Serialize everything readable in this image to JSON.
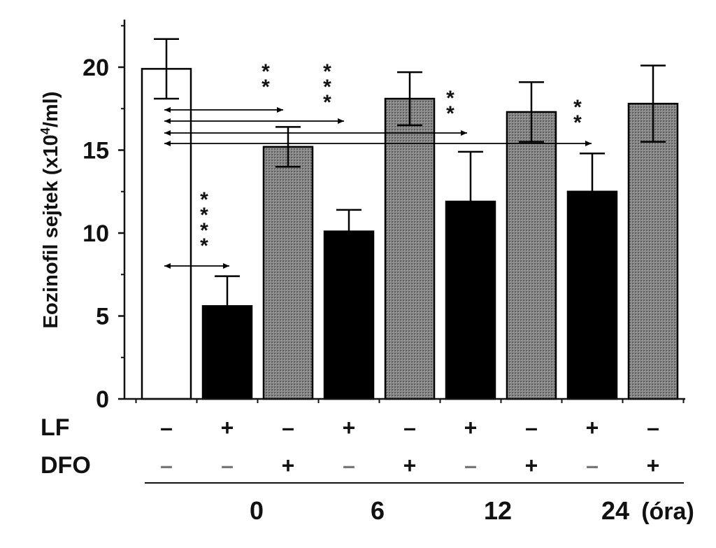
{
  "chart_data": {
    "type": "bar",
    "ylabel_main": "Eozinofil sejtek (x10",
    "ylabel_exp": "4",
    "ylabel_tail": "/ml)",
    "ylim": [
      0,
      23
    ],
    "yticks": [
      "0",
      "5",
      "10",
      "15",
      "20"
    ],
    "yticks_values": [
      0,
      5,
      10,
      15,
      20
    ],
    "bars": [
      {
        "value": 19.9,
        "err": 1.8,
        "kind": "control",
        "lf": "–",
        "dfo": "–"
      },
      {
        "value": 5.6,
        "err": 1.8,
        "kind": "lf",
        "lf": "+",
        "dfo": "–"
      },
      {
        "value": 15.2,
        "err": 1.2,
        "kind": "dfo",
        "lf": "–",
        "dfo": "+"
      },
      {
        "value": 10.1,
        "err": 1.3,
        "kind": "lf",
        "lf": "+",
        "dfo": "–"
      },
      {
        "value": 18.1,
        "err": 1.6,
        "kind": "dfo",
        "lf": "–",
        "dfo": "+"
      },
      {
        "value": 11.9,
        "err": 3.0,
        "kind": "lf",
        "lf": "+",
        "dfo": "–"
      },
      {
        "value": 17.3,
        "err": 1.8,
        "kind": "dfo",
        "lf": "–",
        "dfo": "+"
      },
      {
        "value": 12.5,
        "err": 2.3,
        "kind": "lf",
        "lf": "+",
        "dfo": "–"
      },
      {
        "value": 17.8,
        "err": 2.3,
        "kind": "dfo",
        "lf": "–",
        "dfo": "+"
      }
    ],
    "row_labels": {
      "lf": "LF",
      "dfo": "DFO"
    },
    "time_labels": [
      "0",
      "6",
      "12",
      "24"
    ],
    "time_unit": "(óra)",
    "significance": [
      {
        "stars": "****",
        "from_bar": 0,
        "to_bar": 1
      },
      {
        "stars": "**",
        "from_bar": 0,
        "to_bar": 2
      },
      {
        "stars": "***",
        "from_bar": 0,
        "to_bar": 3
      },
      {
        "stars": "**",
        "from_bar": 0,
        "to_bar": 5
      },
      {
        "stars": "**",
        "from_bar": 0,
        "to_bar": 7
      }
    ],
    "colors": {
      "control": "#ffffff",
      "lf": "#000000",
      "dfo": "#7a7a7a",
      "axis": "#111111"
    }
  }
}
